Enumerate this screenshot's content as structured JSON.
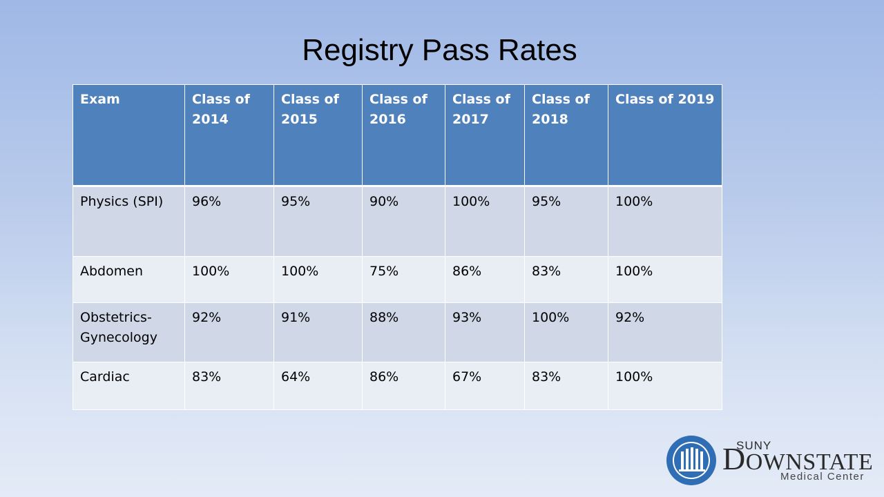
{
  "title": "Registry Pass Rates",
  "table": {
    "headers": [
      "Exam",
      "Class of 2014",
      "Class of 2015",
      "Class of 2016",
      "Class of 2017",
      "Class of 2018",
      "Class of 2019"
    ],
    "rows": [
      {
        "exam": "Physics (SPI)",
        "values": [
          "96%",
          "95%",
          "90%",
          "100%",
          "95%",
          "100%"
        ]
      },
      {
        "exam": "Abdomen",
        "values": [
          "100%",
          "100%",
          "75%",
          "86%",
          "83%",
          "100%"
        ]
      },
      {
        "exam": "Obstetrics-Gynecology",
        "values": [
          "92%",
          "91%",
          "88%",
          "93%",
          "100%",
          "92%"
        ]
      },
      {
        "exam": "Cardiac",
        "values": [
          "83%",
          "64%",
          "86%",
          "67%",
          "83%",
          "100%"
        ]
      }
    ]
  },
  "logo": {
    "suny": "SUNY",
    "downstate_initial": "D",
    "downstate_rest": "OWNSTATE",
    "medical_center": "Medical Center"
  },
  "colors": {
    "header_bg": "#4f81bd",
    "row_dark": "#d0d8e8",
    "row_light": "#e9edf4",
    "seal_blue": "#2f6db5"
  }
}
